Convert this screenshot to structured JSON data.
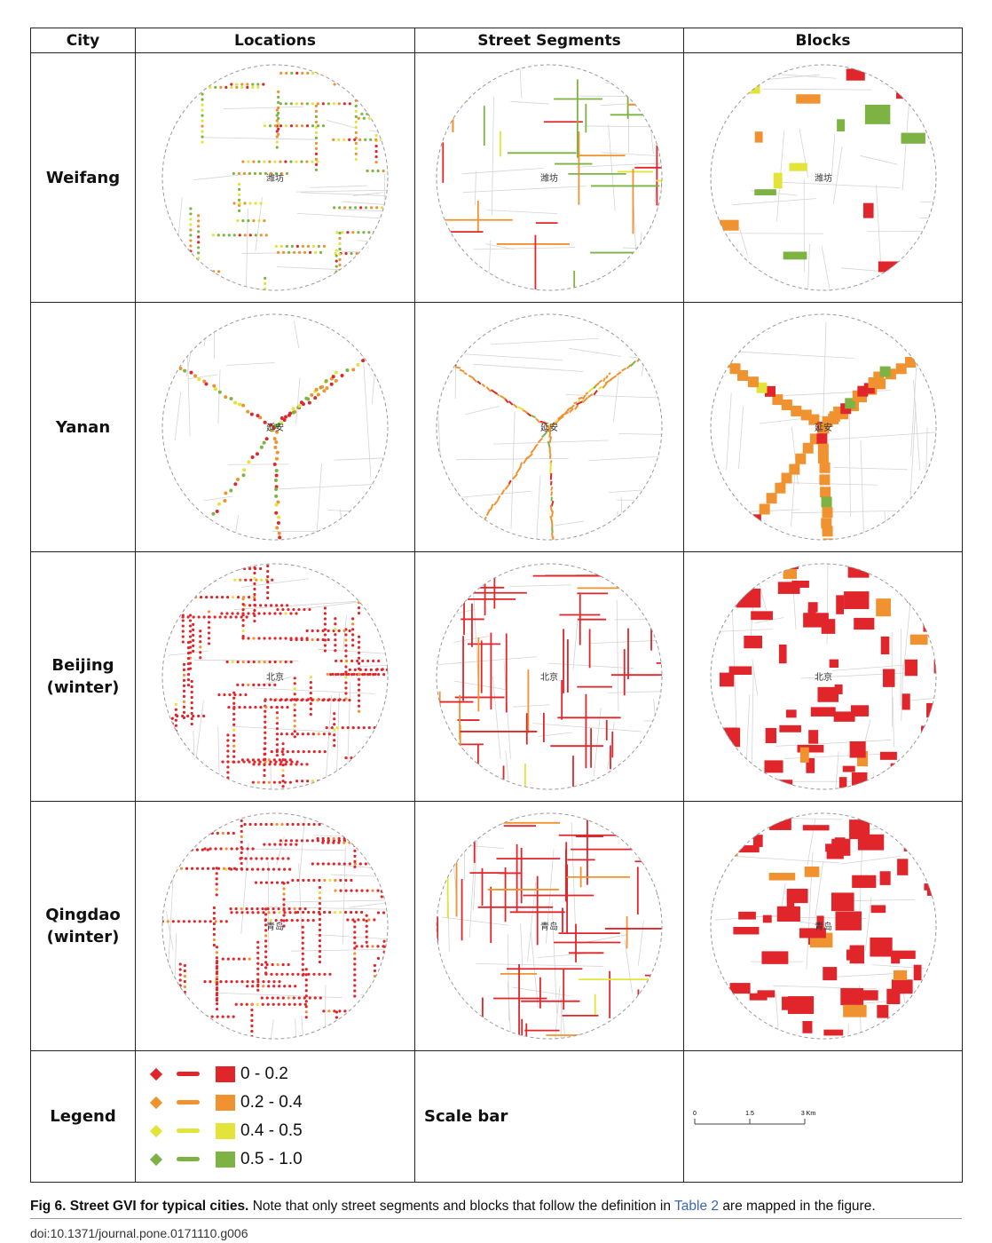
{
  "table": {
    "headers": [
      "City",
      "Locations",
      "Street Segments",
      "Blocks"
    ],
    "rows": [
      {
        "city": "Weifang",
        "map_label": "潍坊"
      },
      {
        "city": "Yanan",
        "map_label": "延安"
      },
      {
        "city": "Beijing\n(winter)",
        "map_label": "北京"
      },
      {
        "city": "Qingdao\n(winter)",
        "map_label": "青岛"
      }
    ],
    "legend_label": "Legend",
    "scale_label": "Scale bar"
  },
  "legend": {
    "classes": [
      {
        "range": "0 - 0.2",
        "color": "#e0262b"
      },
      {
        "range": "0.2 - 0.4",
        "color": "#f0922f"
      },
      {
        "range": "0.4 - 0.5",
        "color": "#e3e43a"
      },
      {
        "range": "0.5 - 1.0",
        "color": "#7cb342"
      }
    ]
  },
  "scale_bar": {
    "ticks": [
      "0",
      "1.5",
      "3 Km"
    ]
  },
  "caption": {
    "label": "Fig 6.",
    "title": "Street GVI for typical cities.",
    "text_before_link": "Note that only street segments and blocks that follow the definition in",
    "link": "Table 2",
    "text_after_link": "are mapped in the figure."
  },
  "doi": "doi:10.1371/journal.pone.0171110.g006"
}
